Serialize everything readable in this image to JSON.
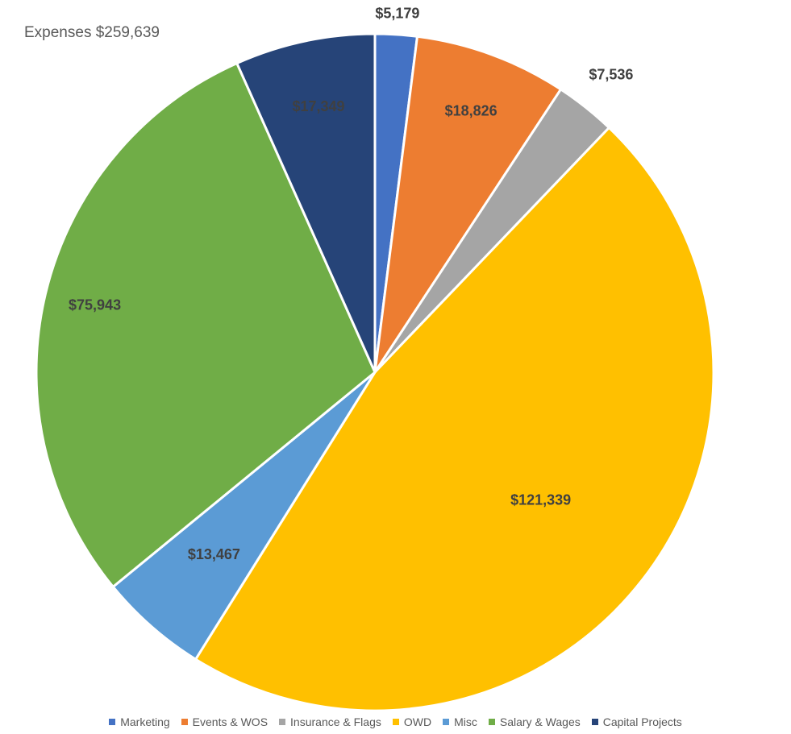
{
  "chart_data": {
    "type": "pie",
    "title": "Expenses $259,639",
    "categories": [
      "Marketing",
      "Events & WOS",
      "Insurance & Flags",
      "OWD",
      "Misc",
      "Salary & Wages",
      "Capital Projects"
    ],
    "values": [
      5179,
      18826,
      7536,
      121339,
      13467,
      75943,
      17349
    ],
    "data_labels": [
      "$5,179",
      "$18,826",
      "$7,536",
      "$121,339",
      "$13,467",
      "$75,943",
      "$17,349"
    ],
    "colors": [
      "#4472C4",
      "#ED7D31",
      "#A5A5A5",
      "#FFC000",
      "#5B9BD5",
      "#70AD47",
      "#264478"
    ],
    "label_colors": [
      "#404040",
      "#404040",
      "#404040",
      "#404040",
      "#404040",
      "#404040",
      "#404040"
    ],
    "legend_position": "bottom",
    "start_angle": "12 o'clock, clockwise"
  }
}
